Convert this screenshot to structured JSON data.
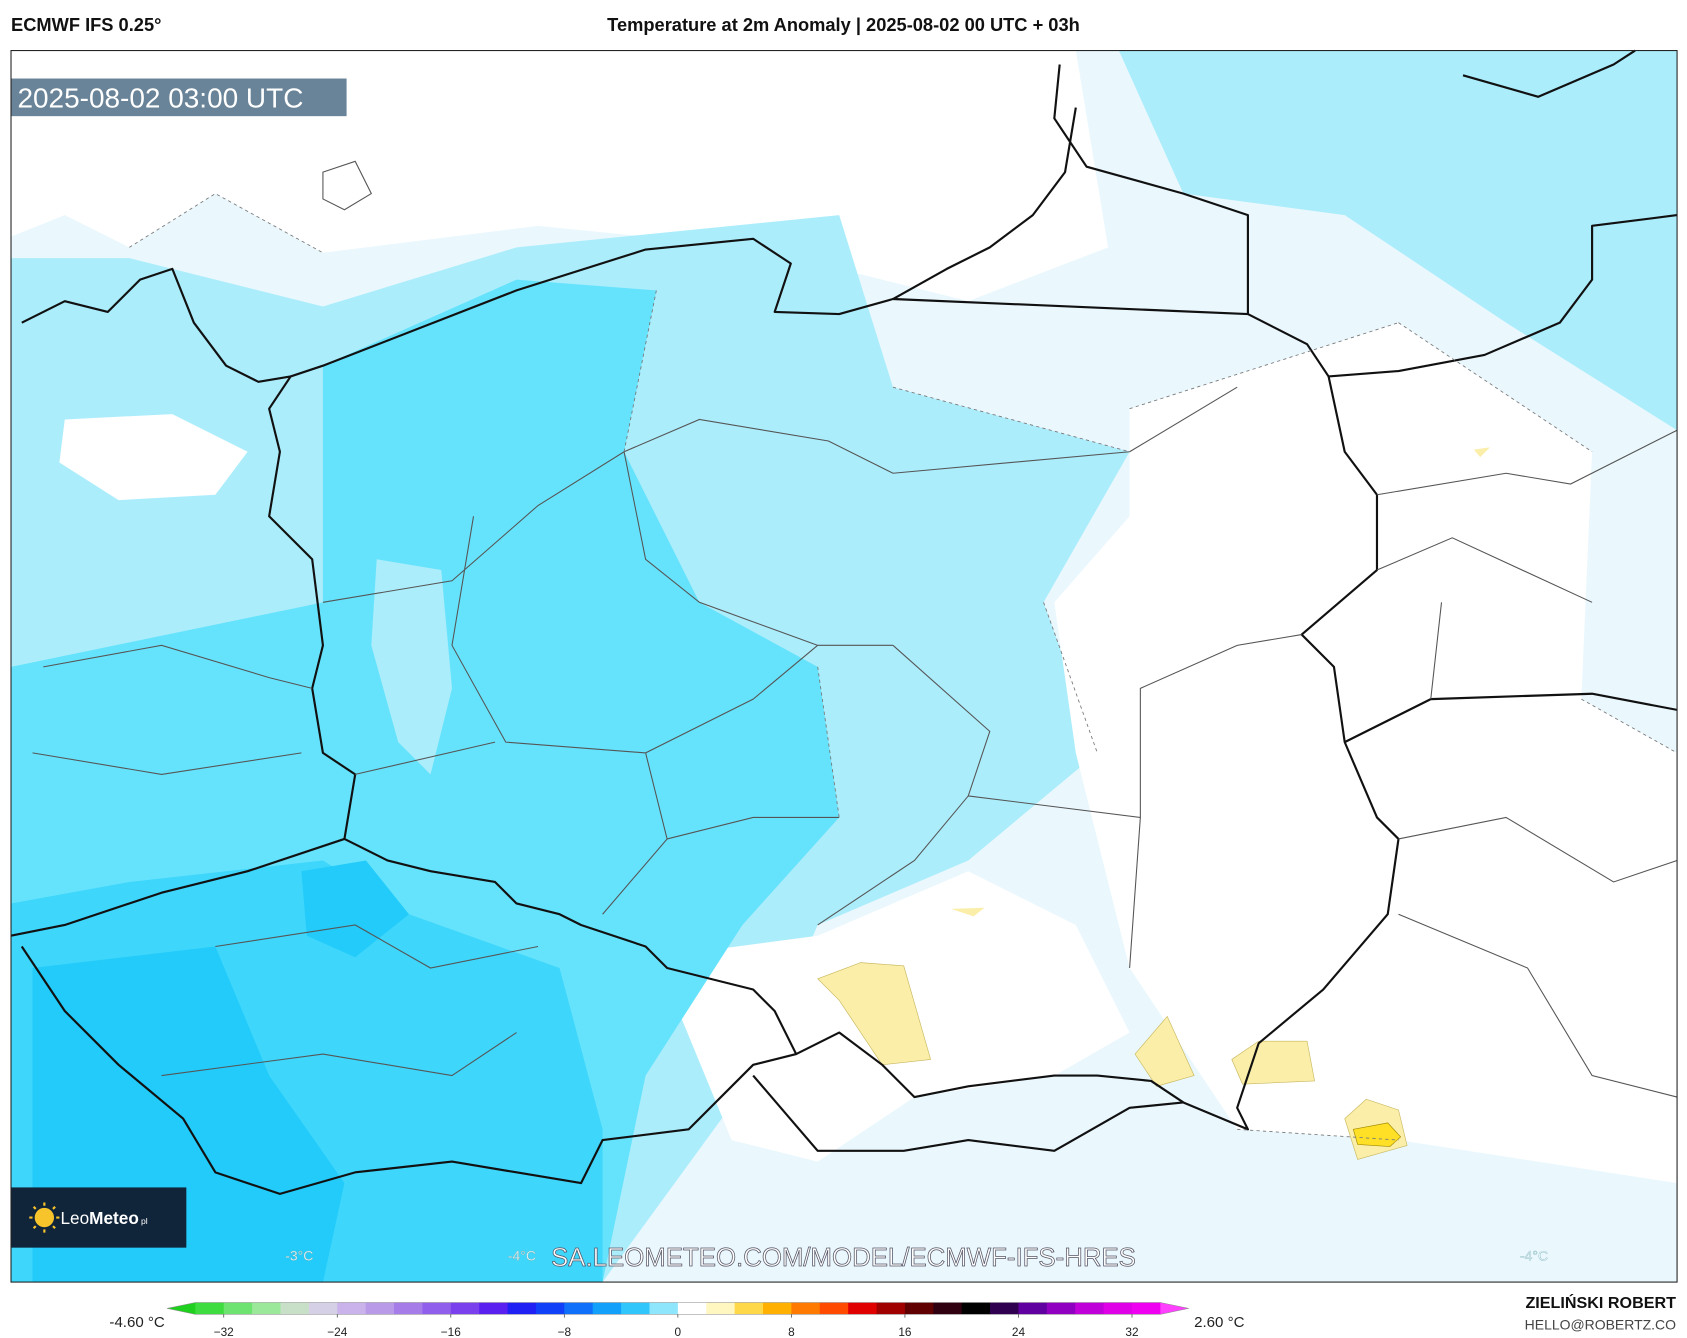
{
  "header": {
    "model": "ECMWF IFS 0.25°",
    "title": "Temperature at 2m Anomaly | 2025-08-02 00 UTC + 03h"
  },
  "map": {
    "timestamp": "2025-08-02 03:00 UTC",
    "watermark": "SA.LEOMETEO.COM/MODEL/ECMWF-IFS-HRES",
    "contour_labels": [
      "-3°C",
      "-4°C",
      "-4°C"
    ],
    "logo": {
      "name": "Leo",
      "name_bold": "Meteo",
      "suffix": "pl"
    }
  },
  "colorbar": {
    "min_label": "-4.60 °C",
    "max_label": "2.60 °C",
    "range": [
      -36,
      36
    ],
    "ticks": [
      {
        "value": -32,
        "label": "−32"
      },
      {
        "value": -24,
        "label": "−24"
      },
      {
        "value": -16,
        "label": "−16"
      },
      {
        "value": -8,
        "label": "−8"
      },
      0,
      8,
      16,
      24,
      32
    ],
    "colors": [
      "#1fd01f",
      "#3fdc3f",
      "#6fe36f",
      "#9be89b",
      "#c8e0c8",
      "#d6d0e6",
      "#c9b3ea",
      "#b99ae8",
      "#a57ce8",
      "#9060ec",
      "#7a40ee",
      "#5a20f0",
      "#2020f5",
      "#1040f8",
      "#1070fa",
      "#12a0fb",
      "#30c6fb",
      "#8ee6fd",
      "#ffffff",
      "#fff6c0",
      "#ffd84a",
      "#ffb000",
      "#ff7a00",
      "#ff4a00",
      "#e00000",
      "#a00000",
      "#600000",
      "#300010",
      "#000000",
      "#300050",
      "#6000a0",
      "#9000c0",
      "#c000d8",
      "#e000e8",
      "#f000f0",
      "#ff40ff"
    ]
  },
  "footer": {
    "author": "ZIELIŃSKI ROBERT",
    "email": "HELLO@ROBERTZ.CO"
  }
}
